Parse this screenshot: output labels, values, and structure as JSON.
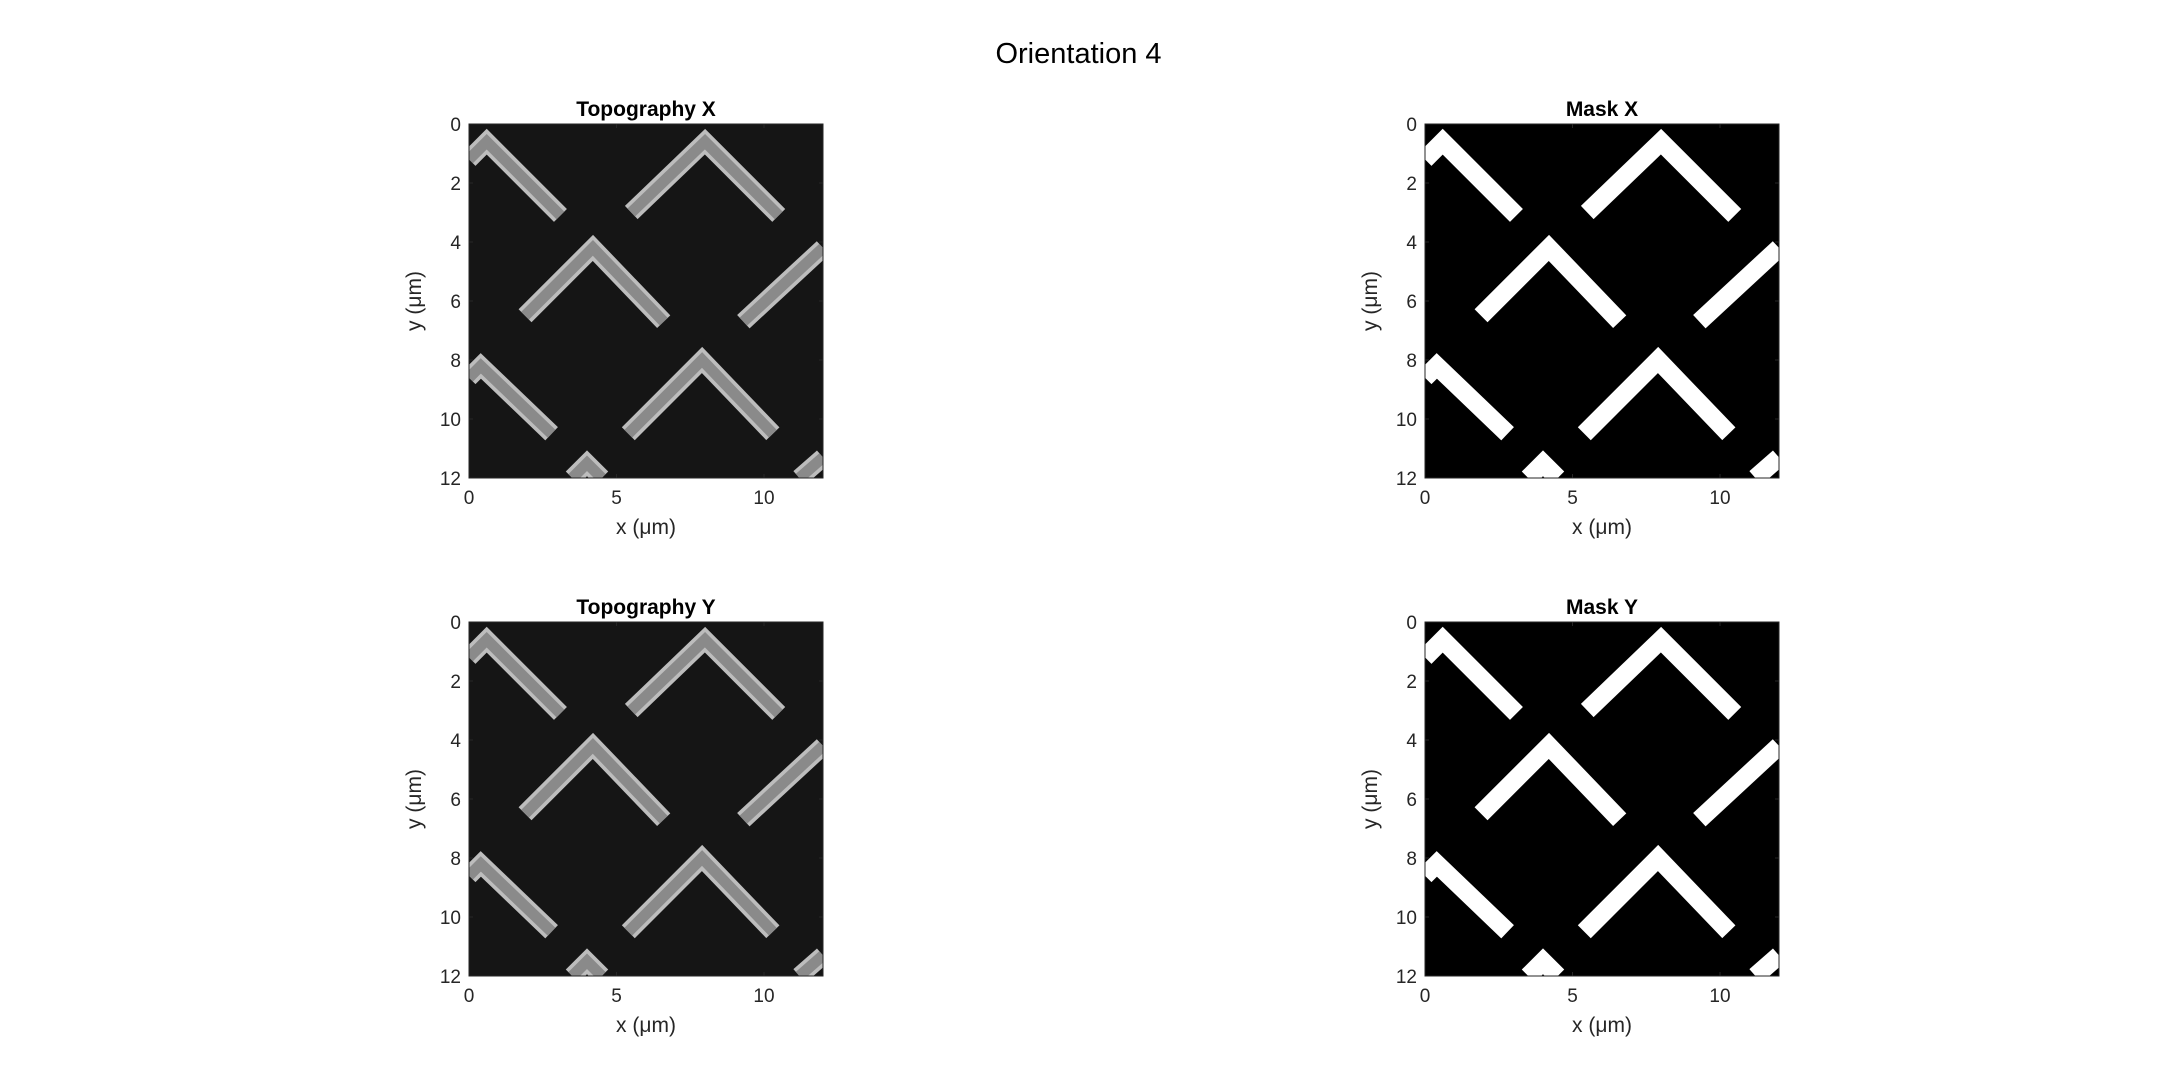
{
  "figure": {
    "title": "Orientation 4"
  },
  "chart_data": [
    {
      "type": "heatmap",
      "title": "Topography X",
      "xlabel": "x (μm)",
      "ylabel": "y (μm)",
      "xlim": [
        0,
        12
      ],
      "ylim": [
        12,
        0
      ],
      "xticks": [
        0,
        5,
        10
      ],
      "yticks": [
        0,
        2,
        4,
        6,
        8,
        10,
        12
      ],
      "colormap": "gray",
      "background_color": "#151515",
      "stripe_color": "#8a8a8a",
      "stripe_edge_color": "#bdbdbd",
      "stripes": [
        {
          "x": [
            0.0,
            0.6,
            3.1
          ],
          "y": [
            1.2,
            0.6,
            3.1
          ]
        },
        {
          "x": [
            5.5,
            8.0,
            10.5
          ],
          "y": [
            3.0,
            0.6,
            3.1
          ]
        },
        {
          "x": [
            1.9,
            4.2,
            6.6
          ],
          "y": [
            6.5,
            4.2,
            6.7
          ]
        },
        {
          "x": [
            9.3,
            12.0
          ],
          "y": [
            6.7,
            4.2
          ]
        },
        {
          "x": [
            0.0,
            0.4,
            2.8
          ],
          "y": [
            8.6,
            8.2,
            10.5
          ]
        },
        {
          "x": [
            5.4,
            7.9,
            10.3
          ],
          "y": [
            10.5,
            8.0,
            10.5
          ]
        },
        {
          "x": [
            3.5,
            4.0,
            4.5
          ],
          "y": [
            12.0,
            11.5,
            12.0
          ]
        },
        {
          "x": [
            11.2,
            12.0
          ],
          "y": [
            12.0,
            11.3
          ]
        }
      ]
    },
    {
      "type": "heatmap",
      "title": "Mask X",
      "xlabel": "x (μm)",
      "ylabel": "y (μm)",
      "xlim": [
        0,
        12
      ],
      "ylim": [
        12,
        0
      ],
      "xticks": [
        0,
        5,
        10
      ],
      "yticks": [
        0,
        2,
        4,
        6,
        8,
        10,
        12
      ],
      "colormap": "gray",
      "background_color": "#000000",
      "stripe_color": "#ffffff",
      "stripes": [
        {
          "x": [
            0.0,
            0.6,
            3.1
          ],
          "y": [
            1.2,
            0.6,
            3.1
          ]
        },
        {
          "x": [
            5.5,
            8.0,
            10.5
          ],
          "y": [
            3.0,
            0.6,
            3.1
          ]
        },
        {
          "x": [
            1.9,
            4.2,
            6.6
          ],
          "y": [
            6.5,
            4.2,
            6.7
          ]
        },
        {
          "x": [
            9.3,
            12.0
          ],
          "y": [
            6.7,
            4.2
          ]
        },
        {
          "x": [
            0.0,
            0.4,
            2.8
          ],
          "y": [
            8.6,
            8.2,
            10.5
          ]
        },
        {
          "x": [
            5.4,
            7.9,
            10.3
          ],
          "y": [
            10.5,
            8.0,
            10.5
          ]
        },
        {
          "x": [
            3.5,
            4.0,
            4.5
          ],
          "y": [
            12.0,
            11.5,
            12.0
          ]
        },
        {
          "x": [
            11.2,
            12.0
          ],
          "y": [
            12.0,
            11.3
          ]
        }
      ]
    },
    {
      "type": "heatmap",
      "title": "Topography Y",
      "xlabel": "x (μm)",
      "ylabel": "y (μm)",
      "xlim": [
        0,
        12
      ],
      "ylim": [
        12,
        0
      ],
      "xticks": [
        0,
        5,
        10
      ],
      "yticks": [
        0,
        2,
        4,
        6,
        8,
        10,
        12
      ],
      "colormap": "gray",
      "background_color": "#151515",
      "stripe_color": "#8a8a8a",
      "stripe_edge_color": "#bdbdbd",
      "stripes": [
        {
          "x": [
            0.0,
            0.6,
            3.1
          ],
          "y": [
            1.2,
            0.6,
            3.1
          ]
        },
        {
          "x": [
            5.5,
            8.0,
            10.5
          ],
          "y": [
            3.0,
            0.6,
            3.1
          ]
        },
        {
          "x": [
            1.9,
            4.2,
            6.6
          ],
          "y": [
            6.5,
            4.2,
            6.7
          ]
        },
        {
          "x": [
            9.3,
            12.0
          ],
          "y": [
            6.7,
            4.2
          ]
        },
        {
          "x": [
            0.0,
            0.4,
            2.8
          ],
          "y": [
            8.6,
            8.2,
            10.5
          ]
        },
        {
          "x": [
            5.4,
            7.9,
            10.3
          ],
          "y": [
            10.5,
            8.0,
            10.5
          ]
        },
        {
          "x": [
            3.5,
            4.0,
            4.5
          ],
          "y": [
            12.0,
            11.5,
            12.0
          ]
        },
        {
          "x": [
            11.2,
            12.0
          ],
          "y": [
            12.0,
            11.3
          ]
        }
      ]
    },
    {
      "type": "heatmap",
      "title": "Mask Y",
      "xlabel": "x (μm)",
      "ylabel": "y (μm)",
      "xlim": [
        0,
        12
      ],
      "ylim": [
        12,
        0
      ],
      "xticks": [
        0,
        5,
        10
      ],
      "yticks": [
        0,
        2,
        4,
        6,
        8,
        10,
        12
      ],
      "colormap": "gray",
      "background_color": "#000000",
      "stripe_color": "#ffffff",
      "stripes": [
        {
          "x": [
            0.0,
            0.6,
            3.1
          ],
          "y": [
            1.2,
            0.6,
            3.1
          ]
        },
        {
          "x": [
            5.5,
            8.0,
            10.5
          ],
          "y": [
            3.0,
            0.6,
            3.1
          ]
        },
        {
          "x": [
            1.9,
            4.2,
            6.6
          ],
          "y": [
            6.5,
            4.2,
            6.7
          ]
        },
        {
          "x": [
            9.3,
            12.0
          ],
          "y": [
            6.7,
            4.2
          ]
        },
        {
          "x": [
            0.0,
            0.4,
            2.8
          ],
          "y": [
            8.6,
            8.2,
            10.5
          ]
        },
        {
          "x": [
            5.4,
            7.9,
            10.3
          ],
          "y": [
            10.5,
            8.0,
            10.5
          ]
        },
        {
          "x": [
            3.5,
            4.0,
            4.5
          ],
          "y": [
            12.0,
            11.5,
            12.0
          ]
        },
        {
          "x": [
            11.2,
            12.0
          ],
          "y": [
            12.0,
            11.3
          ]
        }
      ]
    }
  ]
}
